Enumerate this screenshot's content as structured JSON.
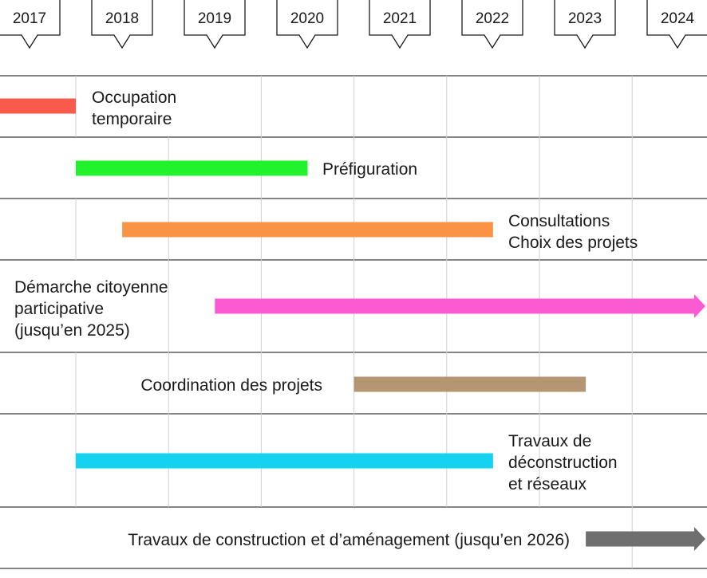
{
  "chart_data": {
    "type": "gantt",
    "years": [
      "2017",
      "2018",
      "2019",
      "2020",
      "2021",
      "2022",
      "2023",
      "2024"
    ],
    "tasks": [
      {
        "label_lines": [
          "Occupation",
          "temporaire"
        ],
        "start": 2017.0,
        "end": 2018.0,
        "color": "#f95a4c",
        "arrow": false
      },
      {
        "label_lines": [
          "Préfiguration"
        ],
        "start": 2018.0,
        "end": 2020.5,
        "color": "#22f22c",
        "arrow": false
      },
      {
        "label_lines": [
          "Consultations",
          "Choix des projets"
        ],
        "start": 2018.5,
        "end": 2022.5,
        "color": "#fb9347",
        "arrow": false
      },
      {
        "label_lines": [
          "Démarche citoyenne",
          "participative",
          "(jusqu’en 2025)"
        ],
        "start": 2019.5,
        "end": 2025.0,
        "color": "#fb5ad2",
        "arrow": true
      },
      {
        "label_lines": [
          "Coordination des projets"
        ],
        "start": 2021.0,
        "end": 2023.5,
        "color": "#b49772",
        "arrow": false
      },
      {
        "label_lines": [
          "Travaux de",
          "déconstruction",
          "et réseaux"
        ],
        "start": 2018.0,
        "end": 2022.5,
        "color": "#15d2f1",
        "arrow": false
      },
      {
        "label_lines": [
          "Travaux de construction et d’aménagement (jusqu’en 2026)"
        ],
        "start": 2023.5,
        "end": 2025.0,
        "color": "#6f6f6f",
        "arrow": true
      }
    ]
  }
}
